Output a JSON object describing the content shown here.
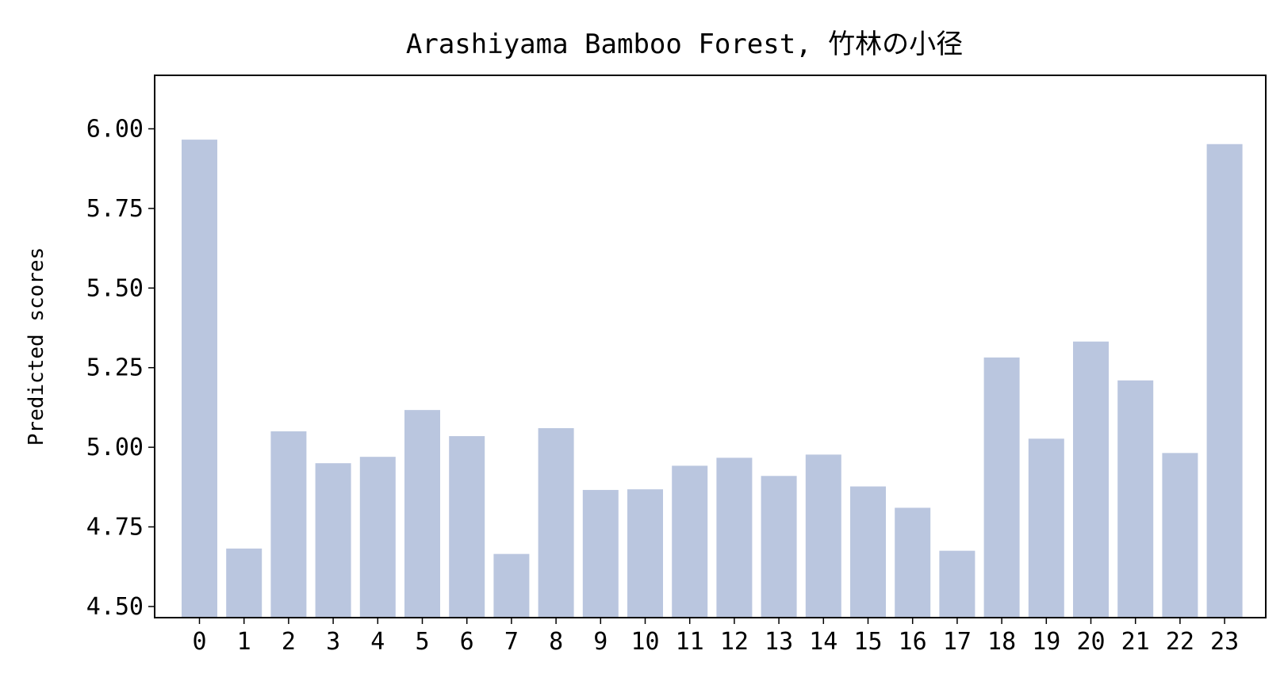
{
  "chart_data": {
    "type": "bar",
    "title": "Arashiyama Bamboo Forest, 竹林の小径",
    "xlabel": "",
    "ylabel": "Predicted scores",
    "categories": [
      "0",
      "1",
      "2",
      "3",
      "4",
      "5",
      "6",
      "7",
      "8",
      "9",
      "10",
      "11",
      "12",
      "13",
      "14",
      "15",
      "16",
      "17",
      "18",
      "19",
      "20",
      "21",
      "22",
      "23"
    ],
    "values": [
      5.966,
      4.682,
      5.05,
      4.95,
      4.97,
      5.117,
      5.035,
      4.665,
      5.06,
      4.866,
      4.868,
      4.942,
      4.967,
      4.91,
      4.977,
      4.877,
      4.81,
      4.675,
      5.282,
      5.027,
      5.332,
      5.21,
      4.982,
      5.952
    ],
    "ylim": [
      4.465,
      6.168
    ],
    "yticks": [
      "4.50",
      "4.75",
      "5.00",
      "5.25",
      "5.50",
      "5.75",
      "6.00"
    ],
    "bar_color": "#bac6df",
    "grid": false,
    "legend": "none"
  }
}
